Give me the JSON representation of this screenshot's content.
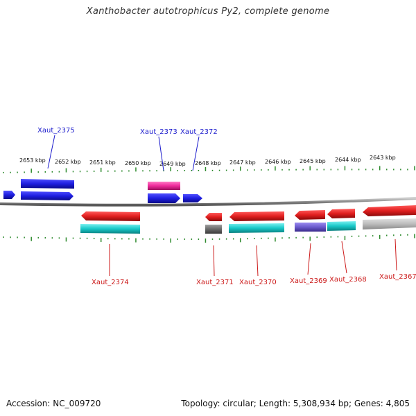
{
  "title": "Xanthobacter autotrophicus Py2, complete genome",
  "footer": {
    "accession": "Accession: NC_009720",
    "topology": "Topology: circular; Length: 5,308,934 bp; Genes: 4,805"
  },
  "colors": {
    "backbone": "#8a8a8a",
    "tick": "#2e8b2e",
    "top_label": "#1a1acc",
    "bottom_label": "#cc1a1a"
  },
  "scale_labels": [
    "2653 kbp",
    "2652 kbp",
    "2651 kbp",
    "2650 kbp",
    "2649 kbp",
    "2648 kbp",
    "2647 kbp",
    "2646 kbp",
    "2645 kbp",
    "2644 kbp",
    "2643 kbp"
  ],
  "genes_top": [
    {
      "name": "Xaut_2375",
      "color": "#1e1ee0"
    },
    {
      "name": "Xaut_2373",
      "color": "#1e1ee0"
    },
    {
      "name": "Xaut_2372",
      "color": "#1e1ee0"
    }
  ],
  "genes_bottom": [
    {
      "name": "Xaut_2374",
      "color": "#e01e1e"
    },
    {
      "name": "Xaut_2371",
      "color": "#e01e1e"
    },
    {
      "name": "Xaut_2370",
      "color": "#e01e1e"
    },
    {
      "name": "Xaut_2369",
      "color": "#e01e1e"
    },
    {
      "name": "Xaut_2368",
      "color": "#e01e1e"
    },
    {
      "name": "Xaut_2367",
      "color": "#e01e1e"
    }
  ],
  "feature_colors": {
    "forward": "#1e1ee0",
    "reverse": "#e01e1e",
    "magenta": "#ee2a9a",
    "cyan": "#18c8c8",
    "gray": "#6a6a6a",
    "purple": "#6a5acd",
    "lightgray": "#bcbcbc"
  }
}
